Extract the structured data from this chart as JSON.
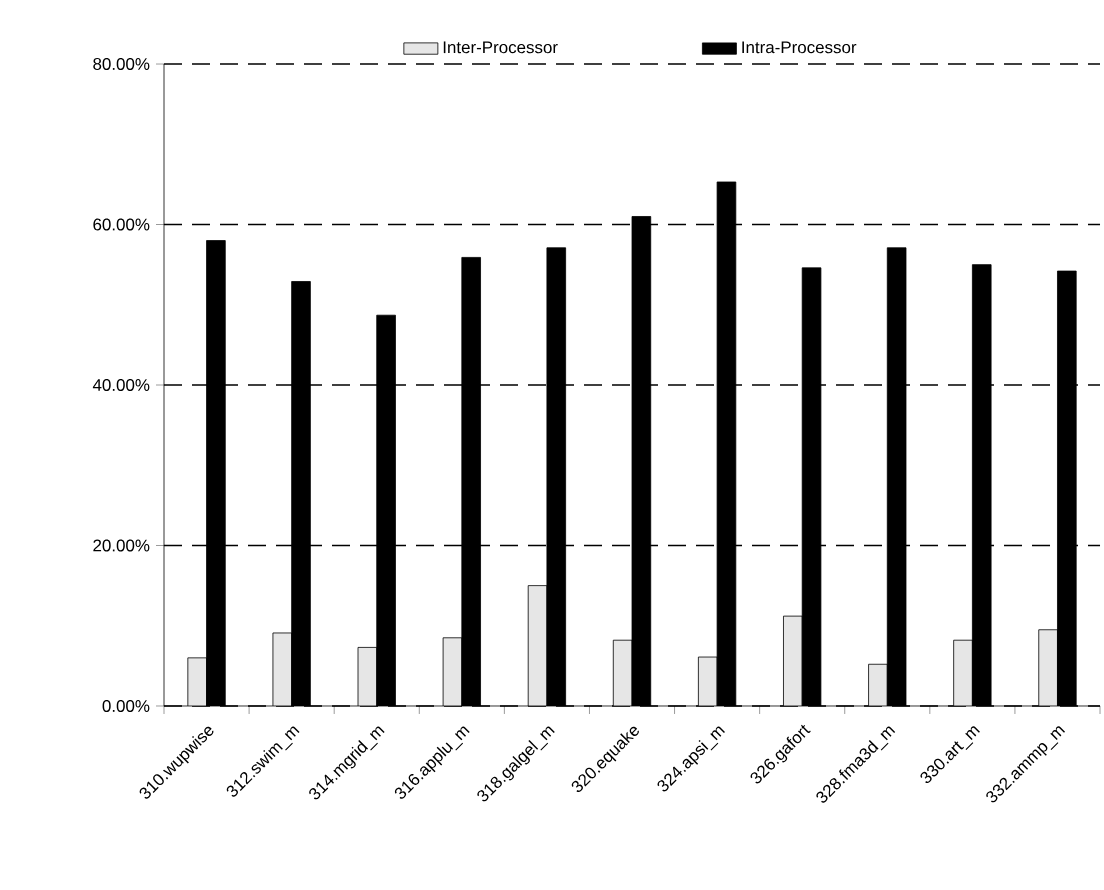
{
  "chart_data": {
    "type": "bar",
    "categories": [
      "310.wupwise",
      "312.swim_m",
      "314.mgrid_m",
      "316.applu_m",
      "318.galgel_m",
      "320.equake",
      "324.apsi_m",
      "326.gafort",
      "328.fma3d_m",
      "330.art_m",
      "332.ammp_m"
    ],
    "series": [
      {
        "name": "Inter-Processor",
        "color": "#e6e6e6",
        "values": [
          6.0,
          9.1,
          7.3,
          8.5,
          15.0,
          8.2,
          6.1,
          11.2,
          5.2,
          8.2,
          9.5
        ]
      },
      {
        "name": "Intra-Processor",
        "color": "#000000",
        "values": [
          58.0,
          52.9,
          48.7,
          55.9,
          57.1,
          61.0,
          65.3,
          54.6,
          57.1,
          55.0,
          54.2
        ]
      }
    ],
    "ylim": [
      0,
      80
    ],
    "yticks": [
      {
        "value": 0,
        "label": "0.00%"
      },
      {
        "value": 20,
        "label": "20.00%"
      },
      {
        "value": 40,
        "label": "40.00%"
      },
      {
        "value": 60,
        "label": "60.00%"
      },
      {
        "value": 80,
        "label": "80.00%"
      }
    ],
    "grid": "y",
    "legend": "top"
  }
}
